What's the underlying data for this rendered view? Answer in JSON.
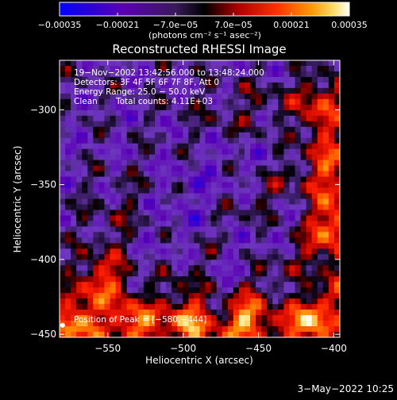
{
  "chart_data": {
    "type": "heatmap",
    "title": "Reconstructed RHESSI Image",
    "xlabel": "Heliocentric X (arcsec)",
    "ylabel": "Heliocentric Y (arcsec)",
    "xlim": [
      -582,
      -396
    ],
    "ylim": [
      -452,
      -267
    ],
    "x_ticks": [
      -550,
      -500,
      -450,
      -400
    ],
    "x_tick_labels": [
      "−550",
      "−500",
      "−450",
      "−400"
    ],
    "y_ticks": [
      -450,
      -400,
      -350,
      -300
    ],
    "y_tick_labels": [
      "−450",
      "−400",
      "−350",
      "−300"
    ],
    "colorbar": {
      "min": -0.00035,
      "max": 0.00035,
      "ticks": [
        -0.00035,
        -0.00021,
        -7e-05,
        7e-05,
        0.00021,
        0.00035
      ],
      "tick_labels": [
        "−0.00035",
        "−0.00021",
        "−7.0e−05",
        "7.0e−05",
        "0.00021",
        "0.00035"
      ],
      "units_label": "(photons cm⁻² s⁻¹ asec⁻²)"
    },
    "annotations": {
      "time_range": "19−Nov−2002 13:42:56.000 to 13:48:24.000",
      "detectors": "Detectors: 3F 4F 5F 6F 7F 8F, Att 0",
      "energy_range": "Energy Range: 25.0 − 50.0 keV",
      "algorithm": "Clean",
      "total_counts": "Total counts: 4.11E+03",
      "peak_position": "Position of Peak = [−580,−444]"
    },
    "peak": [
      -580,
      -444
    ],
    "grid": false,
    "date_stamp": "3−May−2022 10:25"
  },
  "colors": {
    "background": "#000000",
    "foreground": "#ffffff",
    "colormap": [
      "#0000ff",
      "#5a00b4",
      "#6e37be",
      "#000000",
      "#b40000",
      "#ff2000",
      "#ff8c00",
      "#ffe680",
      "#ffffff"
    ]
  }
}
